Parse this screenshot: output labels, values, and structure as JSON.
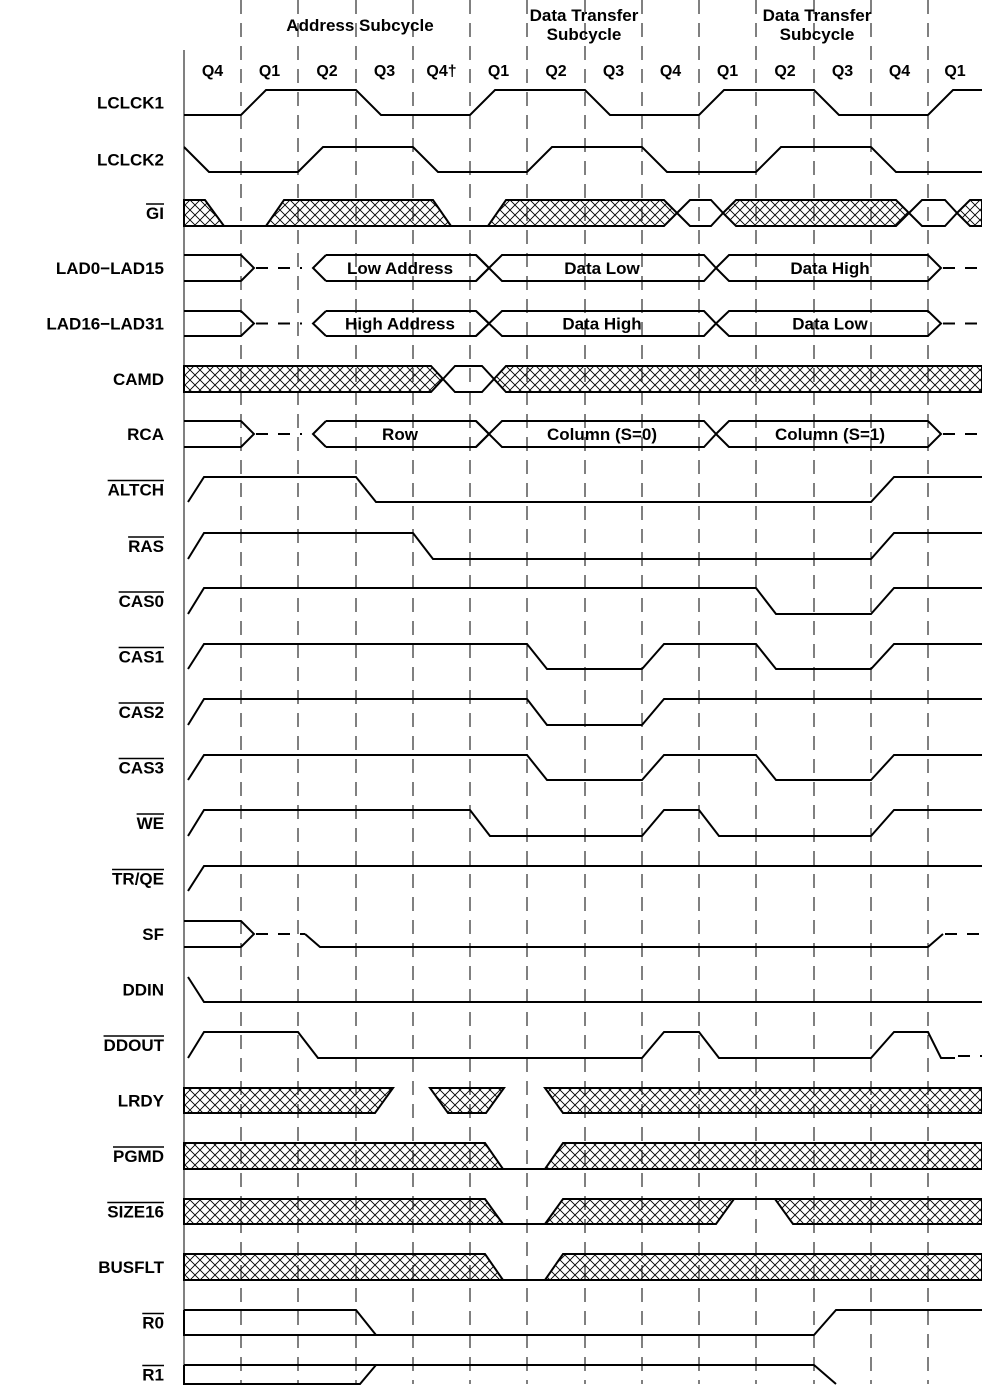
{
  "subcycles": [
    {
      "label": "Address Subcycle"
    },
    {
      "label": "Data Transfer Subcycle"
    },
    {
      "label": "Data Transfer Subcycle"
    }
  ],
  "quarters": [
    "Q4",
    "Q1",
    "Q2",
    "Q3",
    "Q4†",
    "Q1",
    "Q2",
    "Q3",
    "Q4",
    "Q1",
    "Q2",
    "Q3",
    "Q4",
    "Q1"
  ],
  "signals": [
    {
      "name": "LCLCK1",
      "overbar": false
    },
    {
      "name": "LCLCK2",
      "overbar": false
    },
    {
      "name": "GI",
      "overbar": true
    },
    {
      "name": "LAD0−LAD15",
      "overbar": false
    },
    {
      "name": "LAD16−LAD31",
      "overbar": false
    },
    {
      "name": "CAMD",
      "overbar": false
    },
    {
      "name": "RCA",
      "overbar": false
    },
    {
      "name": "ALTCH",
      "overbar": true
    },
    {
      "name": "RAS",
      "overbar": true
    },
    {
      "name": "CAS0",
      "overbar": true
    },
    {
      "name": "CAS1",
      "overbar": true
    },
    {
      "name": "CAS2",
      "overbar": true
    },
    {
      "name": "CAS3",
      "overbar": true
    },
    {
      "name": "WE",
      "overbar": true
    },
    {
      "name": "TR/QE",
      "overbar": true
    },
    {
      "name": "SF",
      "overbar": false
    },
    {
      "name": "DDIN",
      "overbar": false
    },
    {
      "name": "DDOUT",
      "overbar": true
    },
    {
      "name": "LRDY",
      "overbar": false
    },
    {
      "name": "PGMD",
      "overbar": true
    },
    {
      "name": "SIZE16",
      "overbar": true
    },
    {
      "name": "BUSFLT",
      "overbar": false
    },
    {
      "name": "R0",
      "overbar": true
    },
    {
      "name": "R1",
      "overbar": true
    }
  ],
  "bus_labels": {
    "lad0_15": [
      "Low Address",
      "Data Low",
      "Data High"
    ],
    "lad16_31": [
      "High Address",
      "Data High",
      "Data Low"
    ],
    "rca": [
      "Row",
      "Column (S=0)",
      "Column (S=1)"
    ]
  }
}
